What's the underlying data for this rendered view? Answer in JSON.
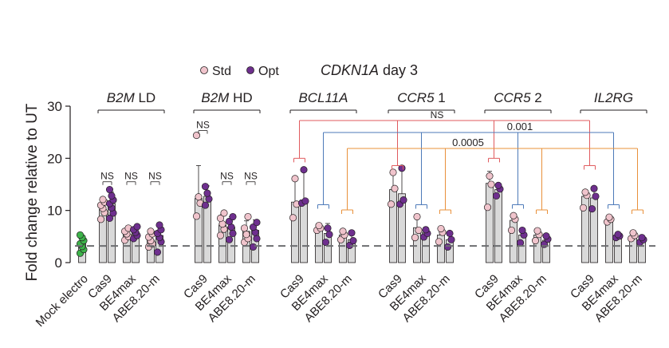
{
  "chart_data": {
    "type": "bar",
    "title_gene": "CDKN1A",
    "title_suffix": " day 3",
    "ylabel": "Fold change relative to UT",
    "ylim": [
      0,
      30
    ],
    "yticks": [
      "0",
      "10",
      "20",
      "30"
    ],
    "reference_line": 3.2,
    "legend": [
      {
        "label": "Std",
        "color": "#f0c4cc"
      },
      {
        "label": "Opt",
        "color": "#6e2f8e"
      }
    ],
    "mock": {
      "label": "Mock electro",
      "color": "#3db34a",
      "mean": 3.6,
      "points": [
        1.8,
        2.5,
        3.1,
        3.6,
        4.2,
        4.8,
        5.3
      ]
    },
    "groups": [
      {
        "gene": "B2M",
        "suffix": " LD",
        "editors": [
          {
            "label": "Cas9",
            "std": {
              "mean": 10.2,
              "err": 1.6,
              "points": [
                8.3,
                9.6,
                10.4,
                11.0,
                11.6,
                12.1
              ]
            },
            "opt": {
              "mean": 11.3,
              "err": 2.2,
              "points": [
                8.5,
                9.5,
                10.5,
                11.3,
                12.0,
                12.8,
                14.0
              ]
            }
          },
          {
            "label": "BE4max",
            "std": {
              "mean": 5.4,
              "err": 1.0,
              "points": [
                4.3,
                5.0,
                5.5,
                6.0,
                6.6
              ]
            },
            "opt": {
              "mean": 5.8,
              "err": 1.0,
              "points": [
                4.6,
                5.2,
                5.8,
                6.3,
                6.9
              ]
            }
          },
          {
            "label": "ABE8.20-m",
            "std": {
              "mean": 4.3,
              "err": 1.3,
              "points": [
                3.0,
                3.6,
                4.2,
                4.9,
                5.5,
                6.0
              ]
            },
            "opt": {
              "mean": 5.2,
              "err": 1.8,
              "points": [
                2.0,
                4.0,
                4.8,
                5.6,
                6.3,
                7.2
              ]
            }
          }
        ],
        "ns_labels": [
          "NS",
          "NS",
          "NS"
        ]
      },
      {
        "gene": "B2M",
        "suffix": " HD",
        "editors": [
          {
            "label": "Cas9",
            "std": {
              "mean": 12.3,
              "err": 6.3,
              "points": [
                8.9,
                11.4,
                12.6,
                24.4
              ]
            },
            "opt": {
              "mean": 12.7,
              "err": 2.0,
              "points": [
                11.0,
                12.2,
                13.3,
                14.6
              ]
            }
          },
          {
            "label": "BE4max",
            "std": {
              "mean": 7.2,
              "err": 2.0,
              "points": [
                5.2,
                6.4,
                7.4,
                8.5,
                9.5
              ]
            },
            "opt": {
              "mean": 6.8,
              "err": 2.0,
              "points": [
                4.4,
                5.6,
                6.8,
                7.9,
                8.8
              ]
            }
          },
          {
            "label": "ABE8.20-m",
            "std": {
              "mean": 6.0,
              "err": 2.0,
              "points": [
                3.9,
                4.6,
                5.4,
                6.6,
                8.8
              ]
            },
            "opt": {
              "mean": 6.2,
              "err": 2.0,
              "points": [
                3.0,
                4.6,
                5.8,
                6.8,
                7.7
              ]
            }
          }
        ],
        "ns_labels": [
          "NS",
          "NS",
          "NS"
        ]
      },
      {
        "gene": "BCL11A",
        "suffix": "",
        "editors": [
          {
            "label": "Cas9",
            "std": {
              "mean": 11.6,
              "err": 4.7,
              "points": [
                8.6,
                11.2,
                16.1
              ]
            },
            "opt": {
              "mean": 12.0,
              "err": 6.0,
              "points": [
                11.4,
                11.8,
                17.8
              ]
            }
          },
          {
            "label": "BE4max",
            "std": {
              "mean": 6.7,
              "err": 0.7,
              "points": [
                6.2,
                6.6,
                7.1
              ]
            },
            "opt": {
              "mean": 5.6,
              "err": 1.9,
              "points": [
                3.9,
                5.4,
                6.6
              ]
            }
          },
          {
            "label": "ABE8.20-m",
            "std": {
              "mean": 5.3,
              "err": 1.1,
              "points": [
                4.4,
                5.3,
                6.0
              ]
            },
            "opt": {
              "mean": 4.4,
              "err": 1.4,
              "points": [
                3.3,
                4.2,
                5.7
              ]
            }
          }
        ],
        "ns_labels": []
      },
      {
        "gene": "CCR5",
        "suffix": " 1",
        "editors": [
          {
            "label": "Cas9",
            "std": {
              "mean": 14.0,
              "err": 3.6,
              "points": [
                11.2,
                14.2,
                17.3
              ]
            },
            "opt": {
              "mean": 13.2,
              "err": 5.1,
              "points": [
                11.2,
                12.0,
                18.1
              ]
            }
          },
          {
            "label": "BE4max",
            "std": {
              "mean": 6.7,
              "err": 2.1,
              "points": [
                4.8,
                6.2,
                8.8
              ]
            },
            "opt": {
              "mean": 5.8,
              "err": 1.0,
              "points": [
                4.9,
                5.6,
                6.3
              ]
            }
          },
          {
            "label": "ABE8.20-m",
            "std": {
              "mean": 5.3,
              "err": 1.6,
              "points": [
                4.0,
                5.8,
                6.5
              ]
            },
            "opt": {
              "mean": 4.4,
              "err": 1.4,
              "points": [
                3.0,
                4.4,
                5.6
              ]
            }
          }
        ],
        "ns_labels": []
      },
      {
        "gene": "CCR5",
        "suffix": " 2",
        "editors": [
          {
            "label": "Cas9",
            "std": {
              "mean": 15.2,
              "err": 2.3,
              "points": [
                10.6,
                15.0,
                16.6
              ]
            },
            "opt": {
              "mean": 14.0,
              "err": 0.9,
              "points": [
                12.8,
                14.1,
                14.8
              ]
            }
          },
          {
            "label": "BE4max",
            "std": {
              "mean": 8.1,
              "err": 0.9,
              "points": [
                6.2,
                8.3,
                9.0
              ]
            },
            "opt": {
              "mean": 5.3,
              "err": 1.1,
              "points": [
                3.8,
                5.3,
                6.2
              ]
            }
          },
          {
            "label": "ABE8.20-m",
            "std": {
              "mean": 5.3,
              "err": 0.9,
              "points": [
                4.2,
                5.4,
                6.1
              ]
            },
            "opt": {
              "mean": 4.3,
              "err": 1.0,
              "points": [
                3.5,
                4.5,
                5.1
              ]
            }
          }
        ],
        "ns_labels": []
      },
      {
        "gene": "IL2RG",
        "suffix": "",
        "editors": [
          {
            "label": "Cas9",
            "std": {
              "mean": 12.7,
              "err": 1.0,
              "points": [
                10.5,
                12.9,
                13.5
              ]
            },
            "opt": {
              "mean": 12.4,
              "err": 2.1,
              "points": [
                10.3,
                12.7,
                14.2
              ]
            }
          },
          {
            "label": "BE4max",
            "std": {
              "mean": 8.3,
              "err": 0.5,
              "points": [
                7.8,
                8.3,
                8.7
              ]
            },
            "opt": {
              "mean": 5.1,
              "err": 0.6,
              "points": [
                4.8,
                5.1,
                5.4
              ]
            }
          },
          {
            "label": "ABE8.20-m",
            "std": {
              "mean": 5.1,
              "err": 0.7,
              "points": [
                4.6,
                5.2,
                5.7
              ]
            },
            "opt": {
              "mean": 4.3,
              "err": 0.6,
              "points": [
                3.9,
                4.4,
                4.8
              ]
            }
          }
        ],
        "ns_labels": []
      }
    ],
    "comparisons": [
      {
        "label": "NS",
        "color": "#e05a5e",
        "editor": 0
      },
      {
        "label": "0.001",
        "color": "#4d7ab8",
        "editor": 1
      },
      {
        "label": "0.0005",
        "color": "#e8903a",
        "editor": 2
      }
    ]
  }
}
